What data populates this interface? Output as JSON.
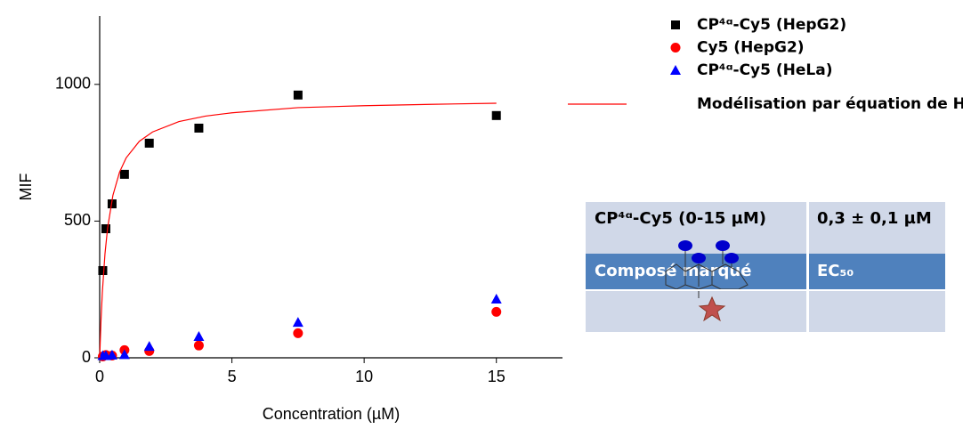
{
  "chart_data": {
    "type": "scatter",
    "xlabel": "Concentration (µM)",
    "ylabel": "MIF",
    "x": [
      0.117,
      0.234,
      0.469,
      0.9375,
      1.875,
      3.75,
      7.5,
      15
    ],
    "series": [
      {
        "name": "CP⁴ᵅ-Cy5 (HepG2)",
        "color": "#000000",
        "marker": "square",
        "values": [
          319,
          472,
          563,
          671,
          785,
          840,
          961,
          886
        ]
      },
      {
        "name": "Cy5 (HepG2)",
        "color": "#ff0000",
        "marker": "circle",
        "values": [
          5,
          10,
          8,
          28,
          25,
          45,
          90,
          168
        ]
      },
      {
        "name": "CP⁴ᵅ-Cy5 (HeLa)",
        "color": "#0000ff",
        "marker": "triangle",
        "values": [
          8,
          8,
          10,
          12,
          42,
          78,
          130,
          215
        ]
      },
      {
        "name": "Modélisation par équation de Hill",
        "color": "#ff0000",
        "marker": "line",
        "x": [
          0,
          0.05,
          0.1,
          0.2,
          0.3,
          0.5,
          0.75,
          1,
          1.5,
          2,
          3,
          4,
          5,
          7.5,
          10,
          12.5,
          15
        ],
        "values": [
          0,
          136,
          238,
          380,
          475,
          594,
          679,
          731,
          792,
          826,
          864,
          884,
          896,
          915,
          922,
          927,
          931
        ]
      }
    ],
    "xlim": [
      0,
      17.5
    ],
    "ylim": [
      0,
      1250
    ],
    "xticks": [
      0,
      5,
      10,
      15
    ],
    "yticks": [
      0,
      500,
      1000
    ]
  },
  "table": {
    "header": [
      "Composé marqué",
      "EC₅₀"
    ],
    "rows": [
      [
        "CP⁴ᵅ-Cy5 (0-15 µM)",
        "0,3 ± 0,1 µM"
      ]
    ]
  }
}
